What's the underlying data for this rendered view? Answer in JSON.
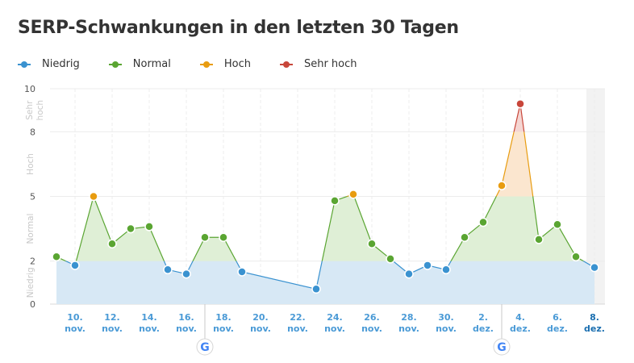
{
  "title": "SERP-Schwankungen in den letzten 30 Tagen",
  "legend": [
    {
      "label": "Niedrig",
      "color": "#3a92d0"
    },
    {
      "label": "Normal",
      "color": "#5aa532"
    },
    {
      "label": "Hoch",
      "color": "#e89c10"
    },
    {
      "label": "Sehr hoch",
      "color": "#c8463a"
    }
  ],
  "chart_data": {
    "type": "area",
    "title": "SERP-Schwankungen in den letzten 30 Tagen",
    "ylim": [
      0,
      10
    ],
    "y_ticks": [
      "0",
      "2",
      "5",
      "8",
      "10"
    ],
    "bands": [
      {
        "name": "Niedrig",
        "from": 0,
        "to": 2,
        "line": "#3a92d0",
        "fill": "#d7e8f5"
      },
      {
        "name": "Normal",
        "from": 2,
        "to": 5,
        "line": "#5aa532",
        "fill": "#dfefd6"
      },
      {
        "name": "Hoch",
        "from": 5,
        "to": 8,
        "line": "#e89c10",
        "fill": "#fbe6cf"
      },
      {
        "name": "Sehr hoch",
        "from": 8,
        "to": 10,
        "line": "#c8463a",
        "fill": "#f5d6d2"
      }
    ],
    "band_labels": [
      "Niedrig",
      "Normal",
      "Hoch",
      "Sehr hoch"
    ],
    "x_ticks": [
      [
        "10.",
        "nov."
      ],
      [
        "12.",
        "nov."
      ],
      [
        "14.",
        "nov."
      ],
      [
        "16.",
        "nov."
      ],
      [
        "18.",
        "nov."
      ],
      [
        "20.",
        "nov."
      ],
      [
        "22.",
        "nov."
      ],
      [
        "24.",
        "nov."
      ],
      [
        "26.",
        "nov."
      ],
      [
        "28.",
        "nov."
      ],
      [
        "30.",
        "nov."
      ],
      [
        "2.",
        "dez."
      ],
      [
        "4.",
        "dez."
      ],
      [
        "6.",
        "dez."
      ],
      [
        "8.",
        "dez."
      ]
    ],
    "points": [
      {
        "date": "9. nov.",
        "value": 2.2,
        "level": "Normal"
      },
      {
        "date": "10. nov.",
        "value": 1.8,
        "level": "Niedrig"
      },
      {
        "date": "11. nov.",
        "value": 5.0,
        "level": "Hoch"
      },
      {
        "date": "12. nov.",
        "value": 2.8,
        "level": "Normal"
      },
      {
        "date": "13. nov.",
        "value": 3.5,
        "level": "Normal"
      },
      {
        "date": "14. nov.",
        "value": 3.6,
        "level": "Normal"
      },
      {
        "date": "15. nov.",
        "value": 1.6,
        "level": "Niedrig"
      },
      {
        "date": "16. nov.",
        "value": 1.4,
        "level": "Niedrig"
      },
      {
        "date": "17. nov.",
        "value": 3.1,
        "level": "Normal"
      },
      {
        "date": "18. nov.",
        "value": 3.1,
        "level": "Normal"
      },
      {
        "date": "19. nov.",
        "value": 1.5,
        "level": "Niedrig"
      },
      {
        "date": "20. nov.",
        "value": null,
        "level": null
      },
      {
        "date": "21. nov.",
        "value": null,
        "level": null
      },
      {
        "date": "22. nov.",
        "value": null,
        "level": null
      },
      {
        "date": "23. nov.",
        "value": 0.7,
        "level": "Niedrig"
      },
      {
        "date": "24. nov.",
        "value": 4.8,
        "level": "Normal"
      },
      {
        "date": "25. nov.",
        "value": 5.1,
        "level": "Hoch"
      },
      {
        "date": "26. nov.",
        "value": 2.8,
        "level": "Normal"
      },
      {
        "date": "27. nov.",
        "value": 2.1,
        "level": "Normal"
      },
      {
        "date": "28. nov.",
        "value": 1.4,
        "level": "Niedrig"
      },
      {
        "date": "29. nov.",
        "value": 1.8,
        "level": "Niedrig"
      },
      {
        "date": "30. nov.",
        "value": 1.6,
        "level": "Niedrig"
      },
      {
        "date": "1. dez.",
        "value": 3.1,
        "level": "Normal"
      },
      {
        "date": "2. dez.",
        "value": 3.8,
        "level": "Normal"
      },
      {
        "date": "3. dez.",
        "value": 5.5,
        "level": "Hoch"
      },
      {
        "date": "4. dez.",
        "value": 9.3,
        "level": "Sehr hoch"
      },
      {
        "date": "5. dez.",
        "value": 3.0,
        "level": "Normal"
      },
      {
        "date": "6. dez.",
        "value": 3.7,
        "level": "Normal"
      },
      {
        "date": "7. dez.",
        "value": 2.2,
        "level": "Normal"
      },
      {
        "date": "8. dez.",
        "value": 1.7,
        "level": "Niedrig"
      }
    ],
    "google_updates": [
      "17. nov.",
      "3. dez."
    ],
    "grid": true,
    "legend_position": "top-left"
  }
}
